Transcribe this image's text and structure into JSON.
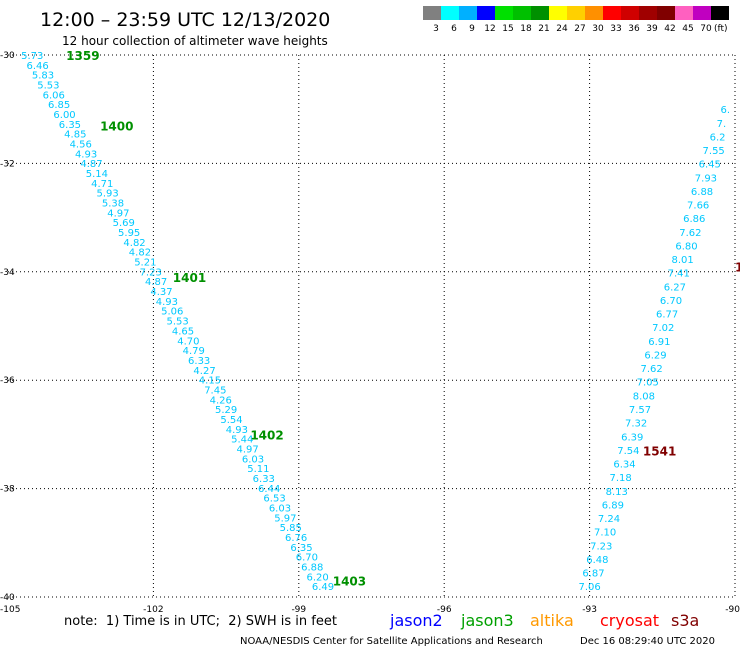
{
  "header": {
    "title": "12:00 – 23:59 UTC 12/13/2020",
    "subtitle": "12 hour collection of altimeter wave heights"
  },
  "legend": {
    "unit": "(ft)",
    "bins": [
      {
        "label": "3",
        "color": "#808080"
      },
      {
        "label": "6",
        "color": "#00ffff"
      },
      {
        "label": "9",
        "color": "#00b0ff"
      },
      {
        "label": "12",
        "color": "#0000ff"
      },
      {
        "label": "15",
        "color": "#00e000"
      },
      {
        "label": "18",
        "color": "#00c000"
      },
      {
        "label": "21",
        "color": "#009000"
      },
      {
        "label": "24",
        "color": "#ffff00"
      },
      {
        "label": "27",
        "color": "#ffd000"
      },
      {
        "label": "30",
        "color": "#ff9000"
      },
      {
        "label": "33",
        "color": "#ff0000"
      },
      {
        "label": "36",
        "color": "#d00000"
      },
      {
        "label": "39",
        "color": "#a00000"
      },
      {
        "label": "42",
        "color": "#800000"
      },
      {
        "label": "45",
        "color": "#ff60c0"
      },
      {
        "label": "70",
        "color": "#c000c0"
      },
      {
        "label": "",
        "color": "#000000"
      }
    ]
  },
  "footer": {
    "note": "note:  1) Time is in UTC;  2) SWH is in feet",
    "satellites": [
      {
        "name": "jason2",
        "color": "#0000ff"
      },
      {
        "name": "jason3",
        "color": "#00a000"
      },
      {
        "name": "altika",
        "color": "#ff9900"
      },
      {
        "name": "cryosat",
        "color": "#ff0000"
      },
      {
        "name": "s3a",
        "color": "#800000"
      }
    ],
    "credit": "NOAA/NESDIS Center for Satellite Applications and Research",
    "timestamp": "Dec 16 08:29:40 UTC 2020"
  },
  "chart_data": {
    "type": "scatter",
    "xlim": [
      -105,
      -90
    ],
    "ylim": [
      -40,
      -30
    ],
    "x_ticks": [
      "-105",
      "-102",
      "-99",
      "-96",
      "-93",
      "-90"
    ],
    "x_tick_values": [
      -105,
      -102,
      -99,
      -96,
      -93,
      -90
    ],
    "y_ticks": [
      "-30",
      "-32",
      "-34",
      "-36",
      "-38",
      "-40"
    ],
    "y_tick_values": [
      -30,
      -32,
      -34,
      -36,
      -38,
      -40
    ],
    "grid": true,
    "value_color": "#00c8ff",
    "tracks": [
      {
        "satellite": "jason3",
        "color": "#009000",
        "x_start": -104.5,
        "y_start": -30.0,
        "x_end": -98.5,
        "y_end": -39.8,
        "values": [
          "5.73",
          "6.46",
          "5.83",
          "5.53",
          "6.06",
          "6.85",
          "6.00",
          "6.35",
          "4.85",
          "4.56",
          "4.93",
          "4.87",
          "5.14",
          "4.71",
          "5.93",
          "5.38",
          "4.97",
          "5.69",
          "5.95",
          "4.82",
          "4.82",
          "5.21",
          "7.23",
          "4.87",
          "4.37",
          "4.93",
          "5.06",
          "5.53",
          "4.65",
          "4.70",
          "4.79",
          "6.33",
          "4.27",
          "4.15",
          "7.45",
          "4.26",
          "5.29",
          "5.54",
          "4.93",
          "5.44",
          "4.97",
          "6.03",
          "5.11",
          "6.33",
          "6.44",
          "6.53",
          "6.03",
          "5.97",
          "5.85",
          "6.76",
          "6.35",
          "6.70",
          "6.88",
          "6.20",
          "6.49"
        ],
        "time_labels": [
          {
            "text": "1359",
            "x": -103.8,
            "y": -30.0
          },
          {
            "text": "1400",
            "x": -103.1,
            "y": -31.3
          },
          {
            "text": "1401",
            "x": -101.6,
            "y": -34.1
          },
          {
            "text": "1402",
            "x": -100.0,
            "y": -37.0
          },
          {
            "text": "1403",
            "x": -98.3,
            "y": -39.7
          }
        ]
      },
      {
        "satellite": "s3a",
        "color": "#800000",
        "x_start": -90.2,
        "y_start": -31.0,
        "x_end": -93.0,
        "y_end": -39.8,
        "values": [
          "6.",
          "7.",
          "6.2",
          "7.55",
          "6.45",
          "7.93",
          "6.88",
          "7.66",
          "6.86",
          "7.62",
          "6.80",
          "8.01",
          "7.41",
          "6.27",
          "6.70",
          "6.77",
          "7.02",
          "6.91",
          "6.29",
          "7.62",
          "7.05",
          "8.08",
          "7.57",
          "7.32",
          "6.39",
          "7.54",
          "6.34",
          "7.18",
          "8.13",
          "6.89",
          "7.24",
          "7.10",
          "7.23",
          "6.48",
          "6.87",
          "7.06"
        ],
        "time_labels": [
          {
            "text": "1",
            "x": -90.0,
            "y": -33.9
          },
          {
            "text": "1541",
            "x": -91.9,
            "y": -37.3
          }
        ]
      }
    ]
  }
}
